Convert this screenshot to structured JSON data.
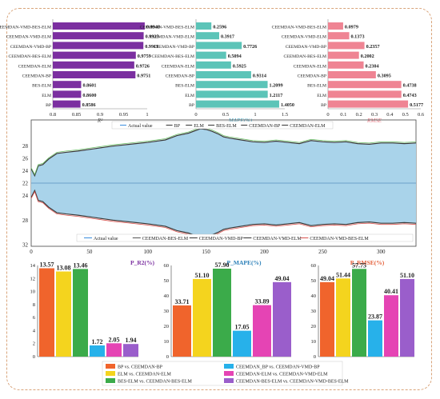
{
  "chart_data": [
    {
      "panel": "r2-bars",
      "type": "bar",
      "orientation": "horizontal",
      "categories": [
        "CEEMDAN-VMD-BES-ELM",
        "CEEMDAN-VMD-ELM",
        "CEEMDAN-VMD-BP",
        "CEEMDAN-BES-ELM",
        "CEEMDAN-ELM",
        "CEEMDAN-BP",
        "BES-ELM",
        "ELM",
        "BP"
      ],
      "values": [
        0.9948,
        0.9925,
        0.9919,
        0.9759,
        0.9726,
        0.9751,
        0.8601,
        0.86,
        0.8586
      ],
      "value_labels": [
        "0.9948",
        "0.9925",
        "0.9919",
        "0.9759",
        "0.9726",
        "0.9751",
        "0.8601",
        "0.8600",
        "0.8586"
      ],
      "xlim": [
        0.8,
        1.0
      ],
      "xticks": [
        "0.8",
        "0.85",
        "0.9",
        "0.95",
        "1"
      ],
      "xlabel": "R²",
      "color": "#7b2fa0"
    },
    {
      "panel": "mape-bars",
      "type": "bar",
      "orientation": "horizontal",
      "categories": [
        "CEEMDAN-VMD-BES-ELM",
        "CEEMDAN-VMD-ELM",
        "CEEMDAN-VMD-BP",
        "CEEMDAN-BES-ELM",
        "CEEMDAN-ELM",
        "CEEMDAN-BP",
        "BES-ELM",
        "ELM",
        "BP"
      ],
      "values": [
        0.2596,
        0.3917,
        0.7726,
        0.5094,
        0.5925,
        0.9314,
        1.2099,
        1.2117,
        1.405
      ],
      "value_labels": [
        "0.2596",
        "0.3917",
        "0.7726",
        "0.5094",
        "0.5925",
        "0.9314",
        "1.2099",
        "1.2117",
        "1.4050"
      ],
      "xlim": [
        0,
        1.5
      ],
      "xticks": [
        "0",
        "0.5",
        "1",
        "1.5"
      ],
      "xlabel": "MAPE(%)",
      "color": "#5cc4b8"
    },
    {
      "panel": "rmse-bars",
      "type": "bar",
      "orientation": "horizontal",
      "categories": [
        "CEEMDAN-VMD-BES-ELM",
        "CEEMDAN-VMD-ELM",
        "CEEMDAN-VMD-BP",
        "CEEMDAN-BES-ELM",
        "CEEMDAN-ELM",
        "CEEMDAN-BP",
        "BES-ELM",
        "ELM",
        "BP"
      ],
      "values": [
        0.0979,
        0.1373,
        0.2357,
        0.2002,
        0.2304,
        0.3095,
        0.4738,
        0.4743,
        0.5177
      ],
      "value_labels": [
        "0.0979",
        "0.1373",
        "0.2357",
        "0.2002",
        "0.2304",
        "0.3095",
        "0.4738",
        "0.4743",
        "0.5177"
      ],
      "xlim": [
        0,
        0.6
      ],
      "xticks": [
        "0",
        "0.1",
        "0.2",
        "0.3",
        "0.4",
        "0.5",
        "0.6"
      ],
      "xlabel": "RMSE",
      "color": "#ef8493"
    },
    {
      "panel": "time-series",
      "type": "area",
      "title": "",
      "xlim": [
        0,
        330
      ],
      "xticks": [
        "0",
        "50",
        "100",
        "150",
        "200",
        "250",
        "300"
      ],
      "upper_yticks": [
        "28",
        "26",
        "24",
        "22"
      ],
      "lower_yticks": [
        "22",
        "24",
        "28",
        "32"
      ],
      "ylim": [
        21.8,
        31.2
      ],
      "mirror_axis": 22,
      "actual_x": [
        0,
        3,
        6,
        10,
        15,
        22,
        30,
        40,
        55,
        70,
        85,
        100,
        115,
        125,
        135,
        145,
        150,
        155,
        160,
        165,
        170,
        180,
        190,
        200,
        210,
        220,
        230,
        240,
        250,
        260,
        270,
        280,
        290,
        300,
        310,
        320,
        330
      ],
      "actual_y": [
        24.3,
        23.2,
        24.8,
        25.0,
        25.9,
        26.8,
        27.0,
        27.2,
        27.6,
        28.0,
        28.3,
        28.6,
        29.0,
        29.7,
        30.1,
        30.8,
        30.7,
        30.4,
        30.0,
        29.5,
        29.3,
        29.0,
        28.7,
        28.6,
        28.8,
        28.6,
        28.4,
        28.9,
        28.7,
        28.6,
        28.7,
        28.4,
        28.3,
        28.5,
        28.5,
        28.4,
        28.5
      ],
      "upper_legend": [
        "Actual value",
        "BP",
        "ELM",
        "BES-ELM",
        "CEEMDAN-BP",
        "CEEMDAN-ELM"
      ],
      "lower_legend": [
        "Actual value",
        "CEEMDAN-BES-ELM",
        "CEEMDAN-VMD-BP",
        "CEEMDAN-VMD-ELM",
        "CEEMDAN-VMD-BES-ELM"
      ],
      "fill_color": "#a9d3ea"
    },
    {
      "panel": "improvement-bars",
      "type": "bar",
      "groups": [
        {
          "label": "P_R2(%)",
          "ylim": [
            0,
            14
          ],
          "yticks": [
            "0",
            "2",
            "4",
            "6",
            "8",
            "10",
            "12",
            "14"
          ],
          "values": [
            13.57,
            13.08,
            13.46,
            1.72,
            2.05,
            1.94
          ]
        },
        {
          "label": "P_MAPE(%)",
          "ylim": [
            0,
            60
          ],
          "yticks": [
            "0",
            "10",
            "20",
            "30",
            "40",
            "50",
            "60"
          ],
          "values": [
            33.71,
            51.1,
            57.9,
            17.05,
            33.89,
            49.04
          ]
        },
        {
          "label": "P_RMSE(%)",
          "ylim": [
            0,
            60
          ],
          "yticks": [
            "0",
            "10",
            "20",
            "30",
            "40",
            "50",
            "60"
          ],
          "values": [
            49.04,
            51.44,
            57.75,
            23.87,
            40.41,
            51.1
          ]
        }
      ],
      "value_labels": [
        [
          "13.57",
          "13.08",
          "13.46",
          "1.72",
          "2.05",
          "1.94"
        ],
        [
          "33.71",
          "51.10",
          "57.90",
          "17.05",
          "33.89",
          "49.04"
        ],
        [
          "49.04",
          "51.44",
          "57.75",
          "23.87",
          "40.41",
          "51.10"
        ]
      ],
      "series": [
        {
          "name": "BP vs. CEEMDAN-BP",
          "color": "#f0642c"
        },
        {
          "name": "ELM vs. CEEMDAN-ELM",
          "color": "#f4d41e"
        },
        {
          "name": "BES-ELM vs. CEEMDAN-BES-ELM",
          "color": "#3bab4a"
        },
        {
          "name": "CEEMDAN_BP vs. CEEMDAN-VMD-BP",
          "color": "#27b1ea"
        },
        {
          "name": "CEEMDAN-ELM vs. CEEMDAN-VMD-ELM",
          "color": "#e544b4"
        },
        {
          "name": "CEEMDAN-BES-ELM vs. CEEMDAN-VMD-BES-ELM",
          "color": "#9a5ecb"
        }
      ]
    }
  ]
}
